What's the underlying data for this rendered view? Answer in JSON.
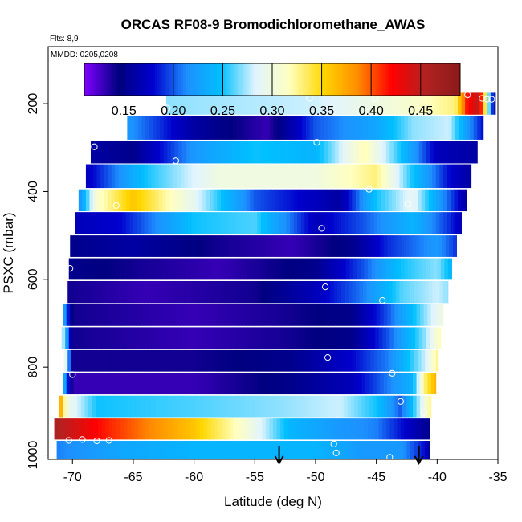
{
  "chart_data": {
    "type": "heatmap",
    "title": "ORCAS RF08-9 Bromodichloromethane_AWAS",
    "flights_note": "Flts: 8,9",
    "date_note": "MMDD: 0205,0208",
    "xlabel": "Latitude (deg N)",
    "ylabel": "PSXC (mbar)",
    "xlim": [
      -72,
      -35
    ],
    "ylim": [
      1010,
      70
    ],
    "y_reversed": true,
    "x_ticks": [
      -70,
      -65,
      -60,
      -55,
      -50,
      -45,
      -40,
      -35
    ],
    "y_ticks": [
      200,
      400,
      600,
      800,
      1000
    ],
    "grid": false,
    "colorbar": {
      "range": [
        0.11,
        0.49
      ],
      "ticks": [
        0.15,
        0.2,
        0.25,
        0.3,
        0.35,
        0.4,
        0.45
      ],
      "tick_labels": [
        "0.15",
        "0.20",
        "0.25",
        "0.30",
        "0.35",
        "0.40",
        "0.45"
      ],
      "colors": [
        "#7f00ff",
        "#000080",
        "#0000cd",
        "#1e90ff",
        "#00bfff",
        "#e0f4ff",
        "#ffffc0",
        "#ffd700",
        "#ff8c00",
        "#ff0000",
        "#b22222",
        "#8b1a1a"
      ]
    },
    "bands": [
      {
        "p": [
          175,
          225
        ],
        "x": [
          -62.3,
          -35.2
        ],
        "stops": [
          [
            -62.3,
            0.27
          ],
          [
            -50,
            0.28
          ],
          [
            -42,
            0.31
          ],
          [
            -38.5,
            0.33
          ],
          [
            -37.5,
            0.42
          ],
          [
            -36.5,
            0.45
          ],
          [
            -35.2,
            0.13
          ]
        ]
      },
      {
        "p": [
          228,
          282
        ],
        "x": [
          -65.5,
          -36.2
        ],
        "stops": [
          [
            -65.5,
            0.22
          ],
          [
            -60,
            0.16
          ],
          [
            -54,
            0.13
          ],
          [
            -50,
            0.2
          ],
          [
            -45,
            0.23
          ],
          [
            -42,
            0.27
          ],
          [
            -39,
            0.28
          ],
          [
            -37.5,
            0.22
          ],
          [
            -36.2,
            0.18
          ]
        ]
      },
      {
        "p": [
          285,
          336
        ],
        "x": [
          -68.5,
          -36.7
        ],
        "stops": [
          [
            -68.5,
            0.16
          ],
          [
            -65,
            0.15
          ],
          [
            -60,
            0.22
          ],
          [
            -55,
            0.25
          ],
          [
            -50,
            0.24
          ],
          [
            -46,
            0.32
          ],
          [
            -43,
            0.25
          ],
          [
            -40,
            0.17
          ],
          [
            -36.7,
            0.16
          ]
        ]
      },
      {
        "p": [
          338,
          392
        ],
        "x": [
          -68.9,
          -37.2
        ],
        "stops": [
          [
            -68.9,
            0.17
          ],
          [
            -64,
            0.25
          ],
          [
            -58,
            0.3
          ],
          [
            -50,
            0.3
          ],
          [
            -45,
            0.33
          ],
          [
            -42,
            0.25
          ],
          [
            -39,
            0.18
          ],
          [
            -37.2,
            0.16
          ]
        ]
      },
      {
        "p": [
          395,
          445
        ],
        "x": [
          -69.5,
          -37.6
        ],
        "stops": [
          [
            -69.5,
            0.21
          ],
          [
            -68,
            0.31
          ],
          [
            -65,
            0.36
          ],
          [
            -60,
            0.29
          ],
          [
            -55,
            0.2
          ],
          [
            -48,
            0.16
          ],
          [
            -45,
            0.25
          ],
          [
            -42,
            0.29
          ],
          [
            -39,
            0.2
          ],
          [
            -37.6,
            0.16
          ]
        ]
      },
      {
        "p": [
          447,
          497
        ],
        "x": [
          -69.8,
          -38
        ],
        "stops": [
          [
            -69.8,
            0.17
          ],
          [
            -66,
            0.18
          ],
          [
            -60,
            0.25
          ],
          [
            -55,
            0.26
          ],
          [
            -50,
            0.17
          ],
          [
            -46,
            0.2
          ],
          [
            -42,
            0.24
          ],
          [
            -39,
            0.19
          ],
          [
            -38,
            0.17
          ]
        ]
      },
      {
        "p": [
          500,
          549
        ],
        "x": [
          -70.2,
          -38.4
        ],
        "stops": [
          [
            -70.2,
            0.15
          ],
          [
            -65,
            0.16
          ],
          [
            -58,
            0.14
          ],
          [
            -52,
            0.13
          ],
          [
            -47,
            0.15
          ],
          [
            -44,
            0.19
          ],
          [
            -40,
            0.22
          ],
          [
            -38.4,
            0.19
          ]
        ]
      },
      {
        "p": [
          552,
          601
        ],
        "x": [
          -70.3,
          -38.8
        ],
        "stops": [
          [
            -70.3,
            0.15
          ],
          [
            -65,
            0.14
          ],
          [
            -58,
            0.13
          ],
          [
            -50,
            0.15
          ],
          [
            -46,
            0.2
          ],
          [
            -43,
            0.25
          ],
          [
            -40,
            0.27
          ],
          [
            -38.8,
            0.24
          ]
        ]
      },
      {
        "p": [
          604,
          654
        ],
        "x": [
          -70.4,
          -39.1
        ],
        "stops": [
          [
            -70.4,
            0.14
          ],
          [
            -64,
            0.13
          ],
          [
            -55,
            0.14
          ],
          [
            -50,
            0.17
          ],
          [
            -46,
            0.21
          ],
          [
            -43,
            0.26
          ],
          [
            -40,
            0.28
          ],
          [
            -39.1,
            0.27
          ]
        ]
      },
      {
        "p": [
          657,
          706
        ],
        "x": [
          -70.8,
          -39.5
        ],
        "stops": [
          [
            -70.8,
            0.24
          ],
          [
            -70,
            0.14
          ],
          [
            -60,
            0.13
          ],
          [
            -52,
            0.14
          ],
          [
            -47,
            0.15
          ],
          [
            -44,
            0.2
          ],
          [
            -41,
            0.27
          ],
          [
            -39.5,
            0.3
          ]
        ]
      },
      {
        "p": [
          709,
          758
        ],
        "x": [
          -70.9,
          -39.7
        ],
        "stops": [
          [
            -70.9,
            0.3
          ],
          [
            -70,
            0.14
          ],
          [
            -60,
            0.13
          ],
          [
            -52,
            0.14
          ],
          [
            -47,
            0.15
          ],
          [
            -44,
            0.2
          ],
          [
            -41,
            0.27
          ],
          [
            -39.7,
            0.32
          ]
        ]
      },
      {
        "p": [
          761,
          810
        ],
        "x": [
          -70.7,
          -39.9
        ],
        "stops": [
          [
            -70.7,
            0.33
          ],
          [
            -70,
            0.14
          ],
          [
            -60,
            0.14
          ],
          [
            -52,
            0.15
          ],
          [
            -47,
            0.18
          ],
          [
            -44,
            0.21
          ],
          [
            -41,
            0.28
          ],
          [
            -39.9,
            0.33
          ]
        ]
      },
      {
        "p": [
          813,
          862
        ],
        "x": [
          -70.8,
          -40.1
        ],
        "stops": [
          [
            -70.8,
            0.25
          ],
          [
            -70,
            0.13
          ],
          [
            -60,
            0.13
          ],
          [
            -52,
            0.15
          ],
          [
            -47,
            0.17
          ],
          [
            -44,
            0.21
          ],
          [
            -42,
            0.24
          ],
          [
            -41,
            0.33
          ],
          [
            -40.1,
            0.37
          ]
        ]
      },
      {
        "p": [
          865,
          914
        ],
        "x": [
          -71.1,
          -40.5
        ],
        "stops": [
          [
            -71.1,
            0.39
          ],
          [
            -70.5,
            0.3
          ],
          [
            -68,
            0.25
          ],
          [
            -60,
            0.26
          ],
          [
            -53,
            0.27
          ],
          [
            -48,
            0.28
          ],
          [
            -45,
            0.25
          ],
          [
            -43,
            0.2
          ],
          [
            -41,
            0.3
          ],
          [
            -40.5,
            0.33
          ]
        ]
      },
      {
        "p": [
          917,
          965
        ],
        "x": [
          -71.5,
          -40.6
        ],
        "stops": [
          [
            -71.5,
            0.46
          ],
          [
            -68,
            0.42
          ],
          [
            -64,
            0.39
          ],
          [
            -60,
            0.36
          ],
          [
            -56,
            0.31
          ],
          [
            -52,
            0.24
          ],
          [
            -48,
            0.22
          ],
          [
            -45,
            0.21
          ],
          [
            -42,
            0.17
          ],
          [
            -40.6,
            0.15
          ]
        ]
      },
      {
        "p": [
          968,
          1010
        ],
        "x": [
          -71.3,
          -40.6
        ],
        "stops": [
          [
            -71.3,
            0.21
          ],
          [
            -66,
            0.23
          ],
          [
            -60,
            0.24
          ],
          [
            -55,
            0.24
          ],
          [
            -50,
            0.24
          ],
          [
            -46,
            0.22
          ],
          [
            -43,
            0.22
          ],
          [
            -41,
            0.18
          ],
          [
            -40.6,
            0.15
          ]
        ]
      }
    ],
    "points": [
      [
        -62.2,
        210
      ],
      [
        -50.5,
        188
      ],
      [
        -50.2,
        212
      ],
      [
        -45.1,
        188
      ],
      [
        -37.5,
        180
      ],
      [
        -36.3,
        188
      ],
      [
        -35.9,
        190
      ],
      [
        -35.5,
        190
      ],
      [
        -49.9,
        288
      ],
      [
        -68.2,
        298
      ],
      [
        -61.5,
        330
      ],
      [
        -45.6,
        395
      ],
      [
        -42.4,
        428
      ],
      [
        -66.4,
        432
      ],
      [
        -49.5,
        484
      ],
      [
        -70.2,
        575
      ],
      [
        -49.2,
        617
      ],
      [
        -44.5,
        648
      ],
      [
        -49,
        778
      ],
      [
        -70,
        817
      ],
      [
        -43.7,
        814
      ],
      [
        -43,
        878
      ],
      [
        -41.1,
        903
      ],
      [
        -70.3,
        967
      ],
      [
        -69.2,
        965
      ],
      [
        -68,
        968
      ],
      [
        -67,
        967
      ],
      [
        -48.5,
        975
      ],
      [
        -48.3,
        995
      ],
      [
        -43.9,
        1005
      ],
      [
        -40.3,
        1005
      ]
    ],
    "arrows": [
      -53,
      -41.5
    ]
  }
}
